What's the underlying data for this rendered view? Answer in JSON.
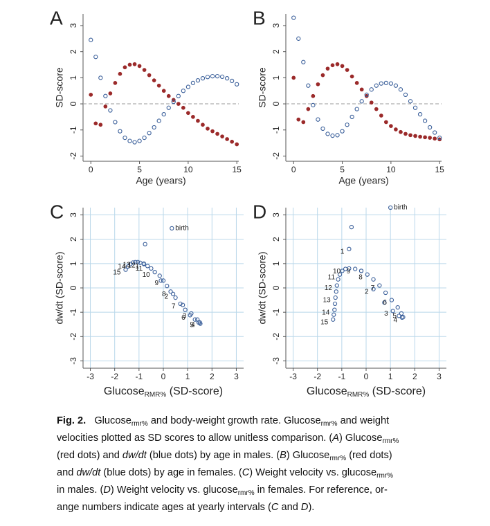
{
  "chart_data": [
    {
      "type": "scatter",
      "panel": "A",
      "xlabel": "Age (years)",
      "ylabel": "SD-score",
      "x": [
        0,
        0.5,
        1,
        1.5,
        2,
        2.5,
        3,
        3.5,
        4,
        4.5,
        5,
        5.5,
        6,
        6.5,
        7,
        7.5,
        8,
        8.5,
        9,
        9.5,
        10,
        10.5,
        11,
        11.5,
        12,
        12.5,
        13,
        13.5,
        14,
        14.5,
        15
      ],
      "series": [
        {
          "color": "#9b2a2a",
          "marker": "filled",
          "values": [
            0.35,
            -0.75,
            -0.8,
            -0.1,
            0.4,
            0.8,
            1.15,
            1.4,
            1.5,
            1.52,
            1.45,
            1.3,
            1.1,
            0.9,
            0.7,
            0.5,
            0.3,
            0.15,
            0,
            -0.15,
            -0.35,
            -0.5,
            -0.65,
            -0.8,
            -0.95,
            -1.05,
            -1.15,
            -1.25,
            -1.35,
            -1.45,
            -1.55
          ]
        },
        {
          "color": "#3a5f9a",
          "marker": "hollow",
          "values": [
            2.45,
            1.8,
            1.0,
            0.3,
            -0.25,
            -0.7,
            -1.05,
            -1.3,
            -1.42,
            -1.47,
            -1.42,
            -1.3,
            -1.12,
            -0.9,
            -0.65,
            -0.4,
            -0.15,
            0.08,
            0.3,
            0.5,
            0.65,
            0.8,
            0.9,
            0.98,
            1.03,
            1.06,
            1.06,
            1.04,
            0.98,
            0.88,
            0.75
          ]
        }
      ],
      "xlim": [
        -0.8,
        15.2
      ],
      "ylim": [
        -2.2,
        3.45
      ],
      "xticks": [
        0,
        5,
        10,
        15
      ],
      "yticks": [
        -2,
        -1,
        0,
        1,
        2,
        3
      ],
      "zero_line": true,
      "grid": false
    },
    {
      "type": "scatter",
      "panel": "B",
      "xlabel": "Age (years)",
      "ylabel": "SD-score",
      "x": [
        0,
        0.5,
        1,
        1.5,
        2,
        2.5,
        3,
        3.5,
        4,
        4.5,
        5,
        5.5,
        6,
        6.5,
        7,
        7.5,
        8,
        8.5,
        9,
        9.5,
        10,
        10.5,
        11,
        11.5,
        12,
        12.5,
        13,
        13.5,
        14,
        14.5,
        15
      ],
      "series": [
        {
          "color": "#9b2a2a",
          "marker": "filled",
          "values": [
            1.0,
            -0.6,
            -0.7,
            -0.2,
            0.3,
            0.75,
            1.1,
            1.35,
            1.48,
            1.52,
            1.45,
            1.3,
            1.05,
            0.8,
            0.55,
            0.3,
            0.05,
            -0.2,
            -0.45,
            -0.7,
            -0.85,
            -0.98,
            -1.08,
            -1.15,
            -1.2,
            -1.23,
            -1.26,
            -1.28,
            -1.3,
            -1.33,
            -1.36
          ]
        },
        {
          "color": "#3a5f9a",
          "marker": "hollow",
          "values": [
            3.3,
            2.5,
            1.6,
            0.7,
            -0.05,
            -0.6,
            -0.95,
            -1.15,
            -1.22,
            -1.2,
            -1.05,
            -0.8,
            -0.5,
            -0.2,
            0.1,
            0.35,
            0.55,
            0.7,
            0.78,
            0.8,
            0.78,
            0.7,
            0.55,
            0.35,
            0.1,
            -0.15,
            -0.4,
            -0.65,
            -0.9,
            -1.1,
            -1.3
          ]
        }
      ],
      "xlim": [
        -0.8,
        15.2
      ],
      "ylim": [
        -2.2,
        3.45
      ],
      "xticks": [
        0,
        5,
        10,
        15
      ],
      "yticks": [
        -2,
        -1,
        0,
        1,
        2,
        3
      ],
      "zero_line": true,
      "grid": false
    },
    {
      "type": "scatter",
      "panel": "C",
      "xlabel": [
        {
          "text": "Glucose"
        },
        {
          "text": "RMR%",
          "style": "sub"
        },
        {
          "text": " (SD-score)"
        }
      ],
      "ylabel": "dw/dt (SD-score)",
      "x": [
        0.35,
        -0.75,
        -0.8,
        -0.1,
        0.4,
        0.8,
        1.15,
        1.4,
        1.5,
        1.52,
        1.45,
        1.3,
        1.1,
        0.9,
        0.7,
        0.5,
        0.3,
        0.15,
        0,
        -0.15,
        -0.35,
        -0.5,
        -0.65,
        -0.8,
        -0.95,
        -1.05,
        -1.15,
        -1.25,
        -1.35,
        -1.45,
        -1.55
      ],
      "series": [
        {
          "color": "#3a5f9a",
          "marker": "hollow",
          "values": [
            2.45,
            1.8,
            1.0,
            0.3,
            -0.25,
            -0.7,
            -1.05,
            -1.3,
            -1.42,
            -1.47,
            -1.42,
            -1.3,
            -1.12,
            -0.9,
            -0.65,
            -0.4,
            -0.15,
            0.08,
            0.3,
            0.5,
            0.65,
            0.8,
            0.9,
            0.98,
            1.03,
            1.06,
            1.06,
            1.04,
            0.98,
            0.88,
            0.75
          ]
        }
      ],
      "point_labels": [
        "birth",
        null,
        "1",
        null,
        "2",
        null,
        "3",
        null,
        "4",
        null,
        "5",
        null,
        "6",
        null,
        "7",
        null,
        "8",
        null,
        "9",
        null,
        "10",
        null,
        "11",
        null,
        "12",
        null,
        "13",
        null,
        "14",
        null,
        "15"
      ],
      "point_label_color": "#e03a2f",
      "xlim": [
        -3.3,
        3.3
      ],
      "ylim": [
        -3.3,
        3.3
      ],
      "xticks": [
        -3,
        -2,
        -1,
        0,
        1,
        2,
        3
      ],
      "yticks": [
        -3,
        -2,
        -1,
        0,
        1,
        2,
        3
      ],
      "zero_line": false,
      "grid": true,
      "grid_color": "#b9d7ea"
    },
    {
      "type": "scatter",
      "panel": "D",
      "xlabel": [
        {
          "text": "Glucose"
        },
        {
          "text": "RMR%",
          "style": "sub"
        },
        {
          "text": " (SD-score)"
        }
      ],
      "ylabel": "dw/dt (SD-score)",
      "x": [
        1.0,
        -0.6,
        -0.7,
        -0.2,
        0.3,
        0.75,
        1.1,
        1.35,
        1.48,
        1.52,
        1.45,
        1.3,
        1.05,
        0.8,
        0.55,
        0.3,
        0.05,
        -0.2,
        -0.45,
        -0.7,
        -0.85,
        -0.98,
        -1.08,
        -1.15,
        -1.2,
        -1.23,
        -1.26,
        -1.28,
        -1.3,
        -1.33,
        -1.36
      ],
      "series": [
        {
          "color": "#3a5f9a",
          "marker": "hollow",
          "values": [
            3.3,
            2.5,
            1.6,
            0.7,
            -0.05,
            -0.6,
            -0.95,
            -1.15,
            -1.22,
            -1.2,
            -1.05,
            -0.8,
            -0.5,
            -0.2,
            0.1,
            0.35,
            0.55,
            0.7,
            0.78,
            0.8,
            0.78,
            0.7,
            0.55,
            0.35,
            0.1,
            -0.15,
            -0.4,
            -0.65,
            -0.9,
            -1.1,
            -1.3
          ]
        }
      ],
      "point_labels": [
        "birth",
        null,
        "1",
        null,
        "2",
        null,
        "3",
        null,
        "4",
        null,
        "5",
        null,
        "6",
        null,
        "7",
        null,
        "8",
        null,
        "9",
        null,
        "10",
        null,
        "11",
        null,
        "12",
        null,
        "13",
        null,
        "14",
        null,
        "15"
      ],
      "point_label_color": "#e03a2f",
      "xlim": [
        -3.3,
        3.3
      ],
      "ylim": [
        -3.3,
        3.3
      ],
      "xticks": [
        -3,
        -2,
        -1,
        0,
        1,
        2,
        3
      ],
      "yticks": [
        -3,
        -2,
        -1,
        0,
        1,
        2,
        3
      ],
      "zero_line": false,
      "grid": true,
      "grid_color": "#b9d7ea"
    }
  ],
  "caption": {
    "lines": [
      [
        {
          "text": "Fig. 2.",
          "style": "bold"
        },
        {
          "text": "   Glucose"
        },
        {
          "text": "rmr%",
          "style": "sub"
        },
        {
          "text": " and body-weight growth rate. Glucose"
        },
        {
          "text": "rmr%",
          "style": "sub"
        },
        {
          "text": " and weight"
        }
      ],
      [
        {
          "text": "velocities plotted as SD scores to allow unitless comparison. ("
        },
        {
          "text": "A",
          "style": "italic"
        },
        {
          "text": ") Glucose"
        },
        {
          "text": "rmr%",
          "style": "sub"
        }
      ],
      [
        {
          "text": "(red dots) and "
        },
        {
          "text": "dw/dt",
          "style": "italic"
        },
        {
          "text": " (blue dots) by age in males. ("
        },
        {
          "text": "B",
          "style": "italic"
        },
        {
          "text": ") Glucose"
        },
        {
          "text": "rmr%",
          "style": "sub"
        },
        {
          "text": " (red dots)"
        }
      ],
      [
        {
          "text": "and "
        },
        {
          "text": "dw/dt",
          "style": "italic"
        },
        {
          "text": " (blue dots) by age in females. ("
        },
        {
          "text": "C",
          "style": "italic"
        },
        {
          "text": ") Weight velocity vs. glucose"
        },
        {
          "text": "rmr%",
          "style": "sub"
        }
      ],
      [
        {
          "text": "in males. ("
        },
        {
          "text": "D",
          "style": "italic"
        },
        {
          "text": ") Weight velocity vs. glucose"
        },
        {
          "text": "rmr%",
          "style": "sub"
        },
        {
          "text": " in females. For reference, or-"
        }
      ],
      [
        {
          "text": "ange numbers indicate ages at yearly intervals ("
        },
        {
          "text": "C",
          "style": "italic"
        },
        {
          "text": " and "
        },
        {
          "text": "D",
          "style": "italic"
        },
        {
          "text": ")."
        }
      ]
    ]
  }
}
